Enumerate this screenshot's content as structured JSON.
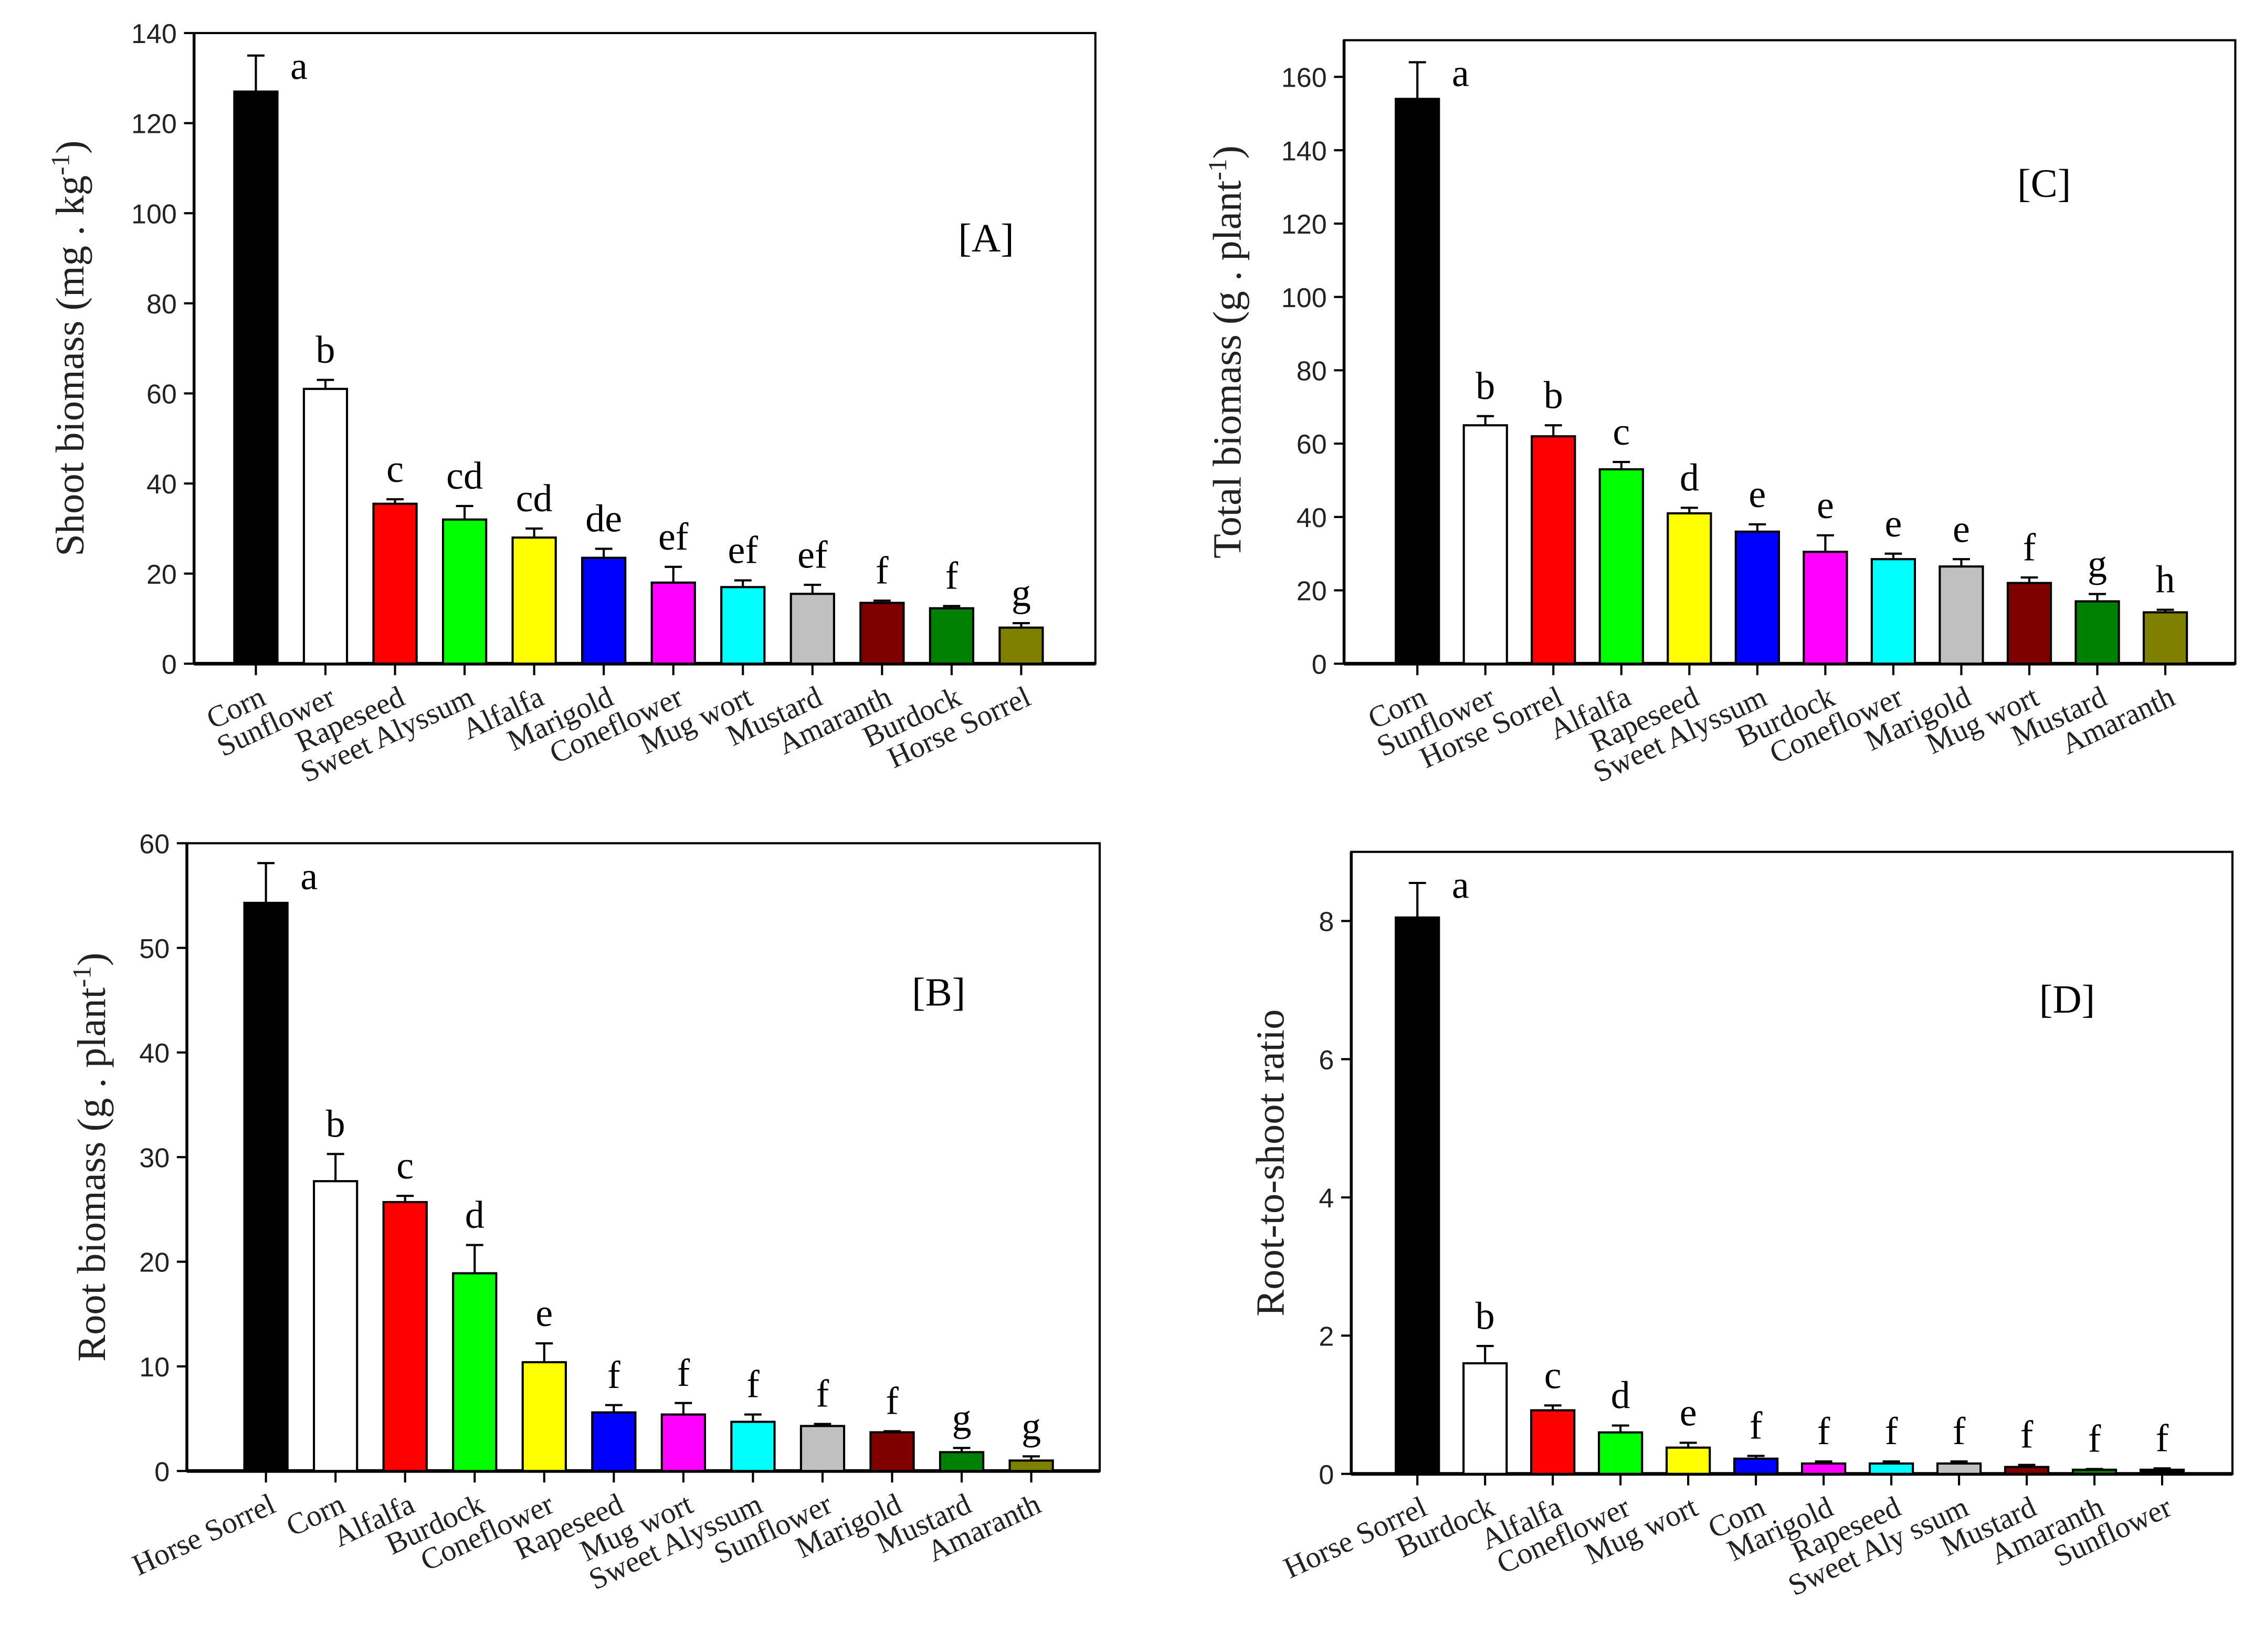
{
  "chart_data": [
    {
      "type": "bar",
      "panel_label": "[A]",
      "ylabel": "Shoot biomass (mg . kg",
      "ylabel_sup": "-1",
      "ylabel_end": ")",
      "ylim": [
        0,
        140
      ],
      "yticks": [
        0,
        20,
        40,
        60,
        80,
        100,
        120,
        140
      ],
      "categories": [
        "Corn",
        "Sunflower",
        "Rapeseed",
        "Sweet Alyssum",
        "Alfalfa",
        "Marigold",
        "Coneflower",
        "Mug wort",
        "Mustard",
        "Amaranth",
        "Burdock",
        "Horse Sorrel"
      ],
      "values": [
        127,
        61,
        35.5,
        32,
        28,
        23.5,
        18,
        17,
        15.5,
        13.5,
        12.3,
        8
      ],
      "errors": [
        8,
        2,
        1,
        3,
        2,
        2,
        3.5,
        1.5,
        2,
        0.5,
        0.5,
        1
      ],
      "letters": [
        "a",
        "b",
        "c",
        "cd",
        "cd",
        "de",
        "ef",
        "ef",
        "ef",
        "f",
        "f",
        "g"
      ],
      "colors": [
        "#000000",
        "#ffffff",
        "#ff0000",
        "#00ff00",
        "#ffff00",
        "#0000ff",
        "#ff00ff",
        "#00ffff",
        "#c0c0c0",
        "#800000",
        "#008000",
        "#808000"
      ]
    },
    {
      "type": "bar",
      "panel_label": "[C]",
      "ylabel": "Total biomass (g . plant",
      "ylabel_sup": "-1",
      "ylabel_end": ")",
      "ylim": [
        0,
        170
      ],
      "yticks": [
        0,
        20,
        40,
        60,
        80,
        100,
        120,
        140,
        160
      ],
      "categories": [
        "Corn",
        "Sunflower",
        "Horse Sorrel",
        "Alfalfa",
        "Rapeseed",
        "Sweet Alyssum",
        "Burdock",
        "Coneflower",
        "Marigold",
        "Mug wort",
        "Mustard",
        "Amaranth"
      ],
      "values": [
        154,
        65,
        62,
        53,
        41,
        36,
        30.5,
        28.5,
        26.5,
        22,
        17,
        14
      ],
      "errors": [
        10,
        2.5,
        3,
        2,
        1.5,
        2,
        4.5,
        1.5,
        2,
        1.5,
        2,
        0.7
      ],
      "letters": [
        "a",
        "b",
        "b",
        "c",
        "d",
        "e",
        "e",
        "e",
        "e",
        "f",
        "g",
        "h"
      ],
      "colors": [
        "#000000",
        "#ffffff",
        "#ff0000",
        "#00ff00",
        "#ffff00",
        "#0000ff",
        "#ff00ff",
        "#00ffff",
        "#c0c0c0",
        "#800000",
        "#008000",
        "#808000"
      ]
    },
    {
      "type": "bar",
      "panel_label": "[B]",
      "ylabel": "Root biomass (g . plant",
      "ylabel_sup": "-1",
      "ylabel_end": ")",
      "ylim": [
        0,
        60
      ],
      "yticks": [
        0,
        10,
        20,
        30,
        40,
        50,
        60
      ],
      "categories": [
        "Horse Sorrel",
        "Corn",
        "Alfalfa",
        "Burdock",
        "Coneflower",
        "Rapeseed",
        "Mug wort",
        "Sweet Alyssum",
        "Sunflower",
        "Marigold",
        "Mustard",
        "Amaranth"
      ],
      "values": [
        54.3,
        27.7,
        25.7,
        18.9,
        10.4,
        5.6,
        5.4,
        4.7,
        4.3,
        3.7,
        1.8,
        1.0
      ],
      "errors": [
        3.8,
        2.6,
        0.6,
        2.7,
        1.8,
        0.7,
        1.1,
        0.7,
        0.2,
        0.1,
        0.4,
        0.4
      ],
      "letters": [
        "a",
        "b",
        "c",
        "d",
        "e",
        "f",
        "f",
        "f",
        "f",
        "f",
        "g",
        "g"
      ],
      "colors": [
        "#000000",
        "#ffffff",
        "#ff0000",
        "#00ff00",
        "#ffff00",
        "#0000ff",
        "#ff00ff",
        "#00ffff",
        "#c0c0c0",
        "#800000",
        "#008000",
        "#808000"
      ]
    },
    {
      "type": "bar",
      "panel_label": "[D]",
      "ylabel": "Root-to-shoot ratio",
      "ylabel_sup": "",
      "ylabel_end": "",
      "ylim": [
        0,
        9
      ],
      "yticks": [
        0,
        2,
        4,
        6,
        8
      ],
      "categories": [
        "Horse Sorrel",
        "Burdock",
        "Alfalfa",
        "Coneflower",
        "Mug wort",
        "Com",
        "Marigold",
        "Rapeseed",
        "Sweet Aly ssum",
        "Mustard",
        "Amaranth",
        "Sunflower"
      ],
      "values": [
        8.05,
        1.6,
        0.92,
        0.6,
        0.38,
        0.22,
        0.15,
        0.15,
        0.15,
        0.1,
        0.06,
        0.06
      ],
      "errors": [
        0.5,
        0.25,
        0.07,
        0.1,
        0.07,
        0.04,
        0.03,
        0.03,
        0.03,
        0.03,
        0.01,
        0.02
      ],
      "letters": [
        "a",
        "b",
        "c",
        "d",
        "e",
        "f",
        "f",
        "f",
        "f",
        "f",
        "f",
        "f"
      ],
      "colors": [
        "#000000",
        "#ffffff",
        "#ff0000",
        "#00ff00",
        "#ffff00",
        "#0000ff",
        "#ff00ff",
        "#00ffff",
        "#c0c0c0",
        "#800000",
        "#008000",
        "#000000"
      ]
    }
  ]
}
